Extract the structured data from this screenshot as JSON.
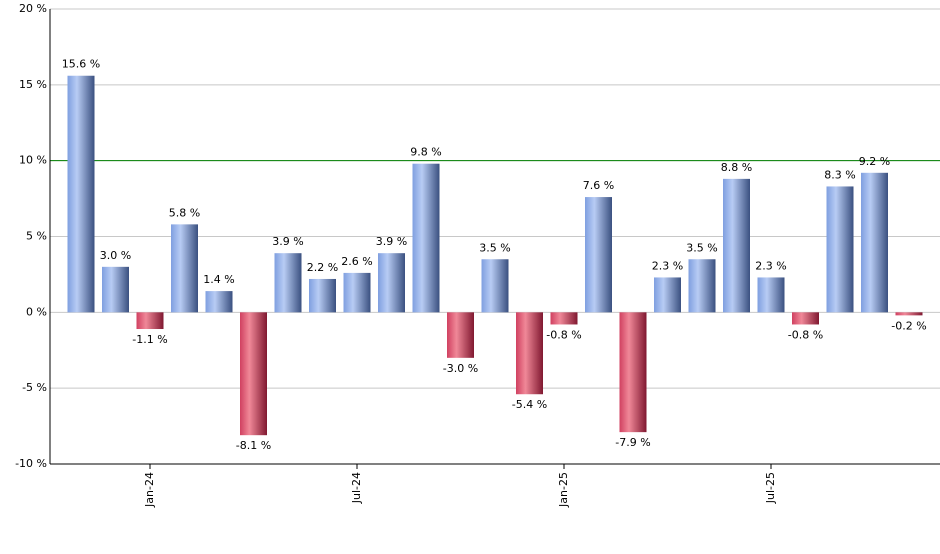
{
  "chart_data": {
    "type": "bar",
    "categories": [
      null,
      null,
      "Jan-24",
      null,
      null,
      null,
      null,
      null,
      "Jul-24",
      null,
      null,
      null,
      null,
      null,
      "Jan-25",
      null,
      null,
      null,
      null,
      null,
      "Jul-25",
      null,
      null,
      null,
      null
    ],
    "values": [
      15.6,
      3.0,
      -1.1,
      5.8,
      1.4,
      -8.1,
      3.9,
      2.2,
      2.6,
      3.9,
      9.8,
      -3.0,
      3.5,
      -5.4,
      -0.8,
      7.6,
      -7.9,
      2.3,
      3.5,
      8.8,
      2.3,
      -0.8,
      8.3,
      9.2,
      -0.2
    ],
    "value_labels": [
      "15.6 %",
      "3.0 %",
      "-1.1 %",
      "5.8 %",
      "1.4 %",
      "-8.1 %",
      "3.9 %",
      "2.2 %",
      "2.6 %",
      "3.9 %",
      "9.8 %",
      "-3.0 %",
      "3.5 %",
      "-5.4 %",
      "-0.8 %",
      "7.6 %",
      "-7.9 %",
      "2.3 %",
      "3.5 %",
      "8.8 %",
      "2.3 %",
      "-0.8 %",
      "8.3 %",
      "9.2 %",
      "-0.2 %"
    ],
    "positive_color": "#7f9fe0",
    "negative_color": "#d04060",
    "ylim": [
      -10,
      20
    ],
    "yticks": [
      {
        "value": -10,
        "label": "-10 %"
      },
      {
        "value": -5,
        "label": "-5 %"
      },
      {
        "value": 0,
        "label": "0 %"
      },
      {
        "value": 5,
        "label": "5 %"
      },
      {
        "value": 10,
        "label": "10 %"
      },
      {
        "value": 15,
        "label": "15 %"
      },
      {
        "value": 20,
        "label": "20 %"
      }
    ],
    "grid": true,
    "reference_line": {
      "value": 10,
      "color": "#008000"
    }
  }
}
